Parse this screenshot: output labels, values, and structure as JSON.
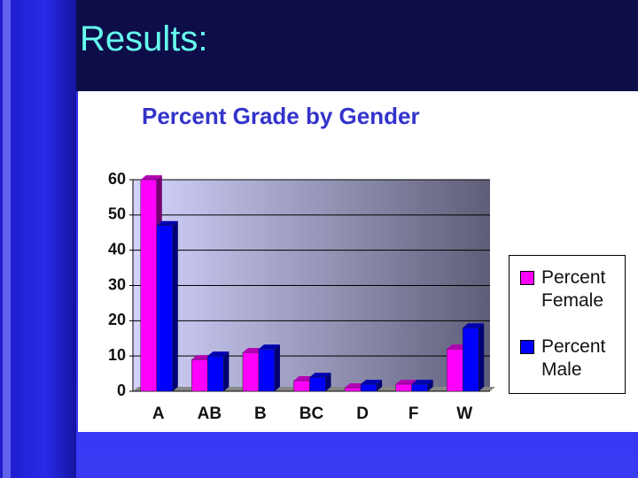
{
  "slide_title": "Results:",
  "chart_data": {
    "type": "bar",
    "title": "Percent Grade by Gender",
    "categories": [
      "A",
      "AB",
      "B",
      "BC",
      "D",
      "F",
      "W"
    ],
    "series": [
      {
        "name": "Percent Female",
        "color": "#ff00ff",
        "values": [
          60,
          9,
          11,
          3,
          1,
          2,
          12
        ]
      },
      {
        "name": "Percent Male",
        "color": "#0000ff",
        "values": [
          47,
          10,
          12,
          4,
          2,
          2,
          18
        ]
      }
    ],
    "ylim": [
      0,
      60
    ],
    "yticks": [
      0,
      10,
      20,
      30,
      40,
      50,
      60
    ],
    "grid": true,
    "legend": "right"
  }
}
